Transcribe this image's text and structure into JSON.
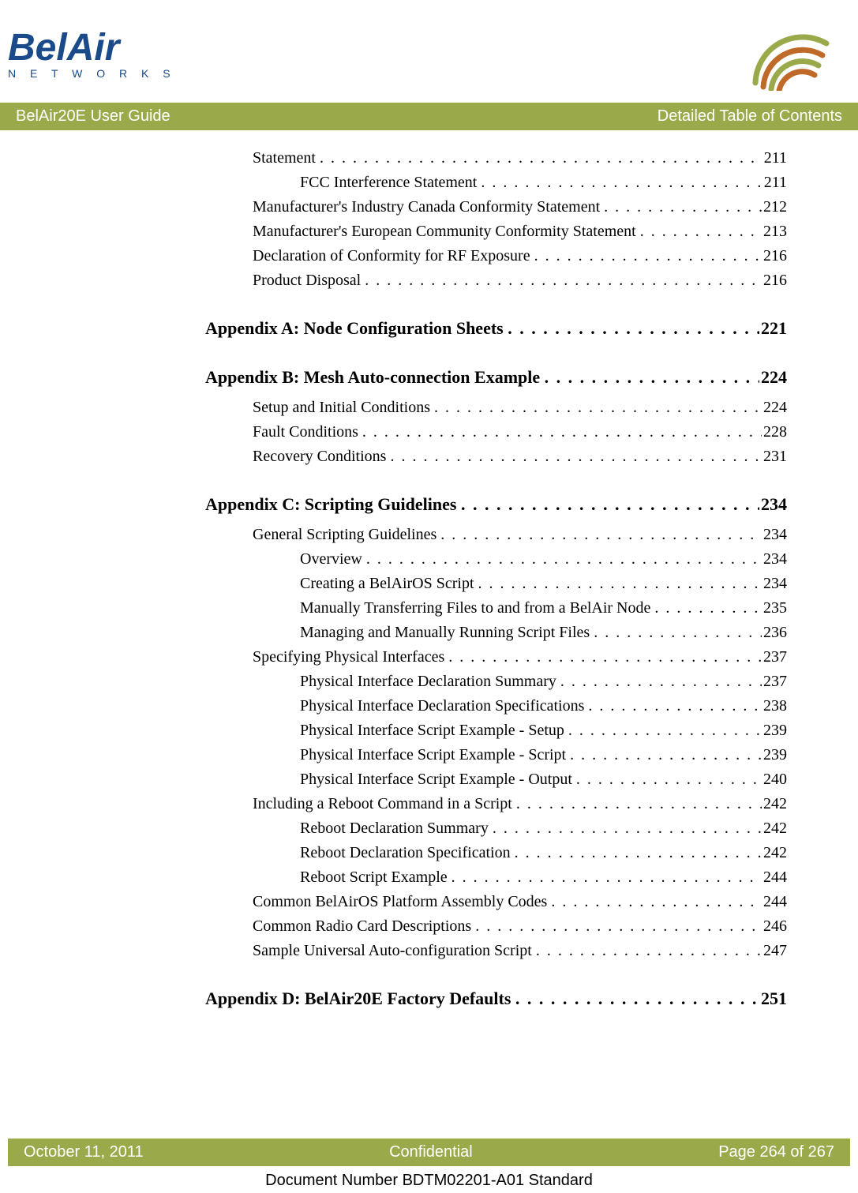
{
  "logo": {
    "brand": "BelAir",
    "subbrand": "N E T W O R K S",
    "color": "#1a4a8a",
    "arc_colors": [
      "#9aaa4a",
      "#c06a2a"
    ]
  },
  "title_bar": {
    "left": "BelAir20E User Guide",
    "right": "Detailed Table of Contents",
    "bg": "#9aaa4a"
  },
  "toc": [
    {
      "level": 1,
      "label": "Statement",
      "page": "211"
    },
    {
      "level": 2,
      "label": "FCC Interference Statement",
      "page": "211"
    },
    {
      "level": 1,
      "label": "Manufacturer's Industry Canada Conformity Statement",
      "page": "212"
    },
    {
      "level": 1,
      "label": "Manufacturer's European Community Conformity Statement",
      "page": "213"
    },
    {
      "level": 1,
      "label": "Declaration of Conformity for RF Exposure",
      "page": "216"
    },
    {
      "level": 1,
      "label": "Product Disposal",
      "page": "216"
    },
    {
      "level": 0,
      "label": "Appendix A: Node Configuration Sheets",
      "page": "221",
      "heading": true
    },
    {
      "level": 0,
      "label": "Appendix B: Mesh Auto-connection Example",
      "page": "224",
      "heading": true
    },
    {
      "level": 1,
      "label": "Setup and Initial Conditions",
      "page": "224"
    },
    {
      "level": 1,
      "label": "Fault Conditions",
      "page": "228"
    },
    {
      "level": 1,
      "label": "Recovery Conditions",
      "page": "231"
    },
    {
      "level": 0,
      "label": "Appendix C: Scripting Guidelines",
      "page": "234",
      "heading": true
    },
    {
      "level": 1,
      "label": "General Scripting Guidelines",
      "page": "234"
    },
    {
      "level": 2,
      "label": "Overview",
      "page": "234"
    },
    {
      "level": 2,
      "label": "Creating a BelAirOS Script",
      "page": "234"
    },
    {
      "level": 2,
      "label": "Manually Transferring Files to and from a BelAir Node",
      "page": "235"
    },
    {
      "level": 2,
      "label": "Managing and Manually Running Script Files",
      "page": "236"
    },
    {
      "level": 1,
      "label": "Specifying Physical Interfaces",
      "page": "237"
    },
    {
      "level": 2,
      "label": "Physical Interface Declaration Summary",
      "page": "237"
    },
    {
      "level": 2,
      "label": "Physical Interface Declaration Specifications",
      "page": "238"
    },
    {
      "level": 2,
      "label": "Physical Interface Script Example - Setup",
      "page": "239"
    },
    {
      "level": 2,
      "label": "Physical Interface Script Example - Script",
      "page": "239"
    },
    {
      "level": 2,
      "label": "Physical Interface Script Example - Output",
      "page": "240"
    },
    {
      "level": 1,
      "label": "Including a Reboot Command in a Script",
      "page": "242"
    },
    {
      "level": 2,
      "label": "Reboot Declaration Summary",
      "page": "242"
    },
    {
      "level": 2,
      "label": "Reboot Declaration Specification",
      "page": "242"
    },
    {
      "level": 2,
      "label": "Reboot Script Example",
      "page": "244"
    },
    {
      "level": 1,
      "label": "Common BelAirOS Platform Assembly Codes",
      "page": "244"
    },
    {
      "level": 1,
      "label": "Common Radio Card Descriptions",
      "page": "246"
    },
    {
      "level": 1,
      "label": "Sample Universal Auto-configuration Script",
      "page": "247"
    },
    {
      "level": 0,
      "label": "Appendix D: BelAir20E Factory Defaults",
      "page": "251",
      "heading": true
    }
  ],
  "footer": {
    "left": "October 11, 2011",
    "center": "Confidential",
    "right": "Page 264 of 267",
    "doc_number": "Document Number BDTM02201-A01 Standard"
  }
}
